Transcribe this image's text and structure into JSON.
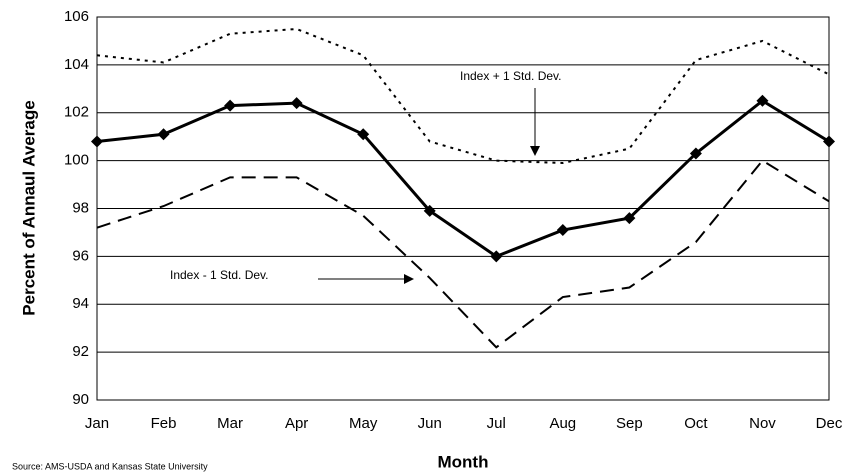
{
  "chart_data": {
    "type": "line",
    "y_label": "Percent of Annaul Average",
    "x_label": "Month",
    "source": "Source: AMS-USDA and Kansas State University",
    "categories": [
      "Jan",
      "Feb",
      "Mar",
      "Apr",
      "May",
      "Jun",
      "Jul",
      "Aug",
      "Sep",
      "Oct",
      "Nov",
      "Dec"
    ],
    "series": [
      {
        "color": "#000000",
        "values": [
          100.8,
          101.1,
          102.3,
          102.4,
          101.1,
          97.9,
          96.0,
          97.1,
          97.6,
          100.3,
          102.5,
          100.8
        ]
      },
      {
        "name": "Index + 1 Std. Dev.",
        "color": "#000000",
        "values": [
          104.4,
          104.1,
          105.3,
          105.5,
          104.4,
          100.8,
          100.0,
          99.9,
          100.5,
          104.2,
          105.0,
          103.6
        ]
      },
      {
        "name": "Index - 1 Std. Dev.",
        "color": "#000000",
        "values": [
          97.2,
          98.1,
          99.3,
          99.3,
          97.7,
          95.1,
          92.2,
          94.3,
          94.7,
          96.6,
          100.0,
          98.3
        ]
      }
    ],
    "ylim": [
      90,
      106
    ],
    "yticks": [
      90,
      92,
      94,
      96,
      98,
      100,
      102,
      104,
      106
    ],
    "grid": true
  }
}
